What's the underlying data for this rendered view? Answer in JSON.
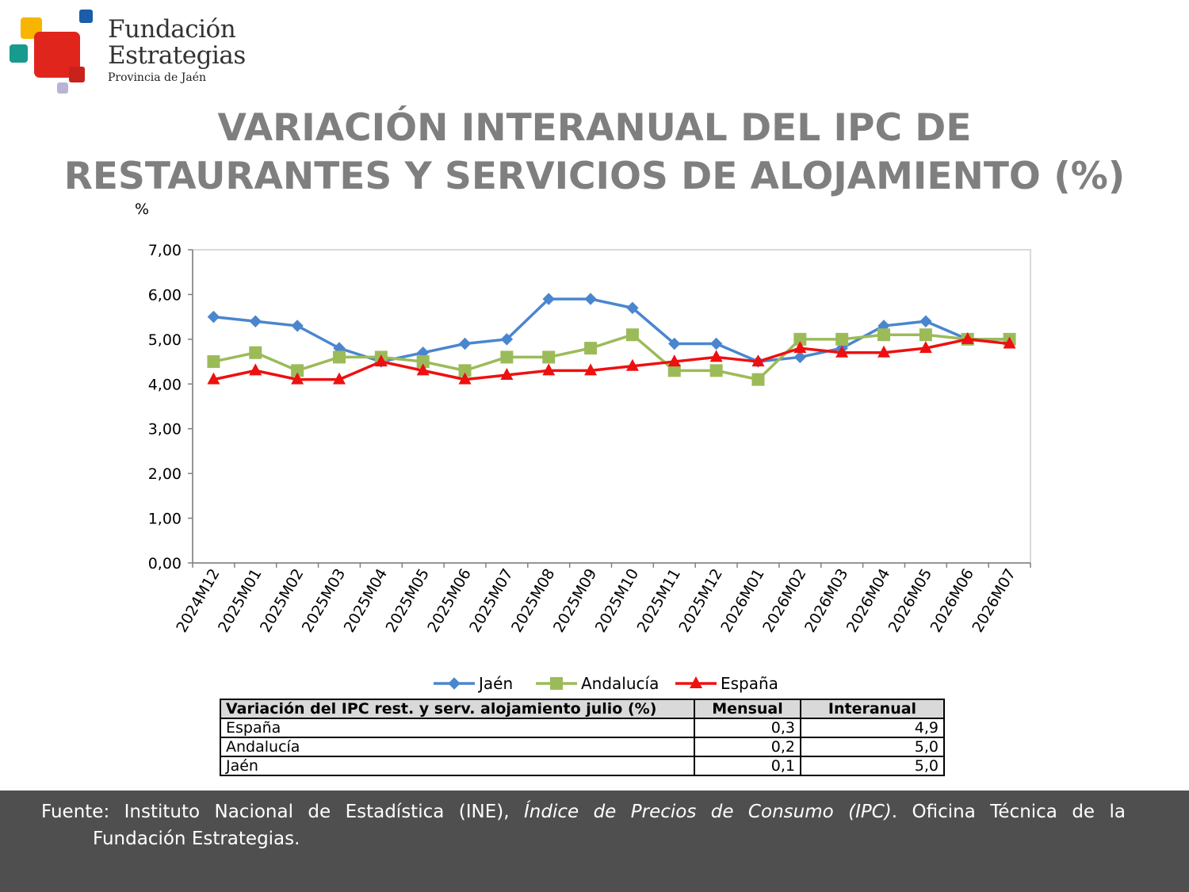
{
  "brand": {
    "name_line1": "Fundación",
    "name_line2": "Estrategias",
    "subline": "Provincia de Jaén",
    "colors": {
      "yellow": "#f7b500",
      "red": "#e0261c",
      "teal": "#169b8e",
      "blue": "#1b5da8",
      "lilac": "#b9b3d6",
      "darkred": "#c8221b"
    }
  },
  "title": {
    "line1": "VARIACIÓN INTERANUAL DEL IPC DE",
    "line2": "RESTAURANTES Y SERVICIOS DE ALOJAMIENTO (%)"
  },
  "chart_data": {
    "type": "line",
    "ylabel": "%",
    "ylim": [
      0,
      7
    ],
    "yticks": [
      "0,00",
      "1,00",
      "2,00",
      "3,00",
      "4,00",
      "5,00",
      "6,00",
      "7,00"
    ],
    "grid": false,
    "legend": "bottom",
    "categories": [
      "2024M12",
      "2025M01",
      "2025M02",
      "2025M03",
      "2025M04",
      "2025M05",
      "2025M06",
      "2025M07",
      "2025M08",
      "2025M09",
      "2025M10",
      "2025M11",
      "2025M12",
      "2026M01",
      "2026M02",
      "2026M03",
      "2026M04",
      "2026M05",
      "2026M06",
      "2026M07"
    ],
    "series": [
      {
        "name": "Jaén",
        "color": "#4a86cf",
        "marker": "diamond",
        "values": [
          5.5,
          5.4,
          5.3,
          4.8,
          4.5,
          4.7,
          4.9,
          5.0,
          5.9,
          5.9,
          5.7,
          4.9,
          4.9,
          4.5,
          4.6,
          4.8,
          5.3,
          5.4,
          5.0,
          5.0
        ]
      },
      {
        "name": "Andalucía",
        "color": "#9bbb59",
        "marker": "square",
        "values": [
          4.5,
          4.7,
          4.3,
          4.6,
          4.6,
          4.5,
          4.3,
          4.6,
          4.6,
          4.8,
          5.1,
          4.3,
          4.3,
          4.1,
          5.0,
          5.0,
          5.1,
          5.1,
          5.0,
          5.0
        ]
      },
      {
        "name": "España",
        "color": "#ee1010",
        "marker": "triangle",
        "values": [
          4.1,
          4.3,
          4.1,
          4.1,
          4.5,
          4.3,
          4.1,
          4.2,
          4.3,
          4.3,
          4.4,
          4.5,
          4.6,
          4.5,
          4.8,
          4.7,
          4.7,
          4.8,
          5.0,
          4.9
        ]
      }
    ]
  },
  "table": {
    "headers": [
      "Variación del IPC rest. y serv. alojamiento julio (%)",
      "Mensual",
      "Interanual"
    ],
    "rows": [
      {
        "label": "España",
        "mensual": "0,3",
        "interanual": "4,9"
      },
      {
        "label": "Andalucía",
        "mensual": "0,2",
        "interanual": "5,0"
      },
      {
        "label": "Jaén",
        "mensual": "0,1",
        "interanual": "5,0"
      }
    ]
  },
  "footer": {
    "prefix": "Fuente: Instituto Nacional de Estadística (INE), ",
    "italic": "Índice de Precios de Consumo (IPC)",
    "suffix": ". Oficina Técnica de la",
    "line2": "Fundación Estrategias."
  }
}
